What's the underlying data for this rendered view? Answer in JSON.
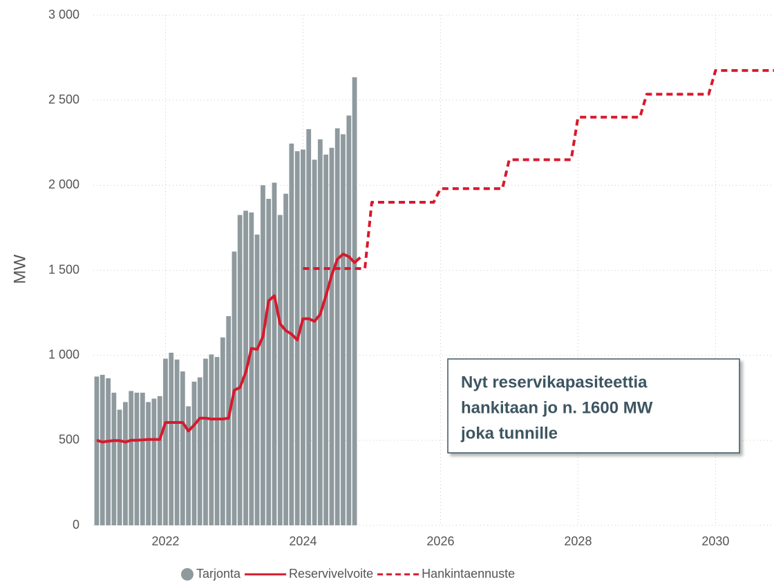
{
  "chart_data": {
    "type": "bar_line",
    "ylabel": "MW",
    "xlim": [
      2020.95,
      2030.85
    ],
    "xticks": [
      2022,
      2024,
      2026,
      2028,
      2030
    ],
    "ylim": [
      0,
      3000
    ],
    "yticks": [
      0,
      500,
      {
        "value": 1000,
        "label": "1 000"
      },
      {
        "value": 1500,
        "label": "1 500"
      },
      {
        "value": 2000,
        "label": "2 000"
      },
      {
        "value": 2500,
        "label": "2 500"
      },
      {
        "value": 3000,
        "label": "3 000"
      }
    ],
    "grid": true,
    "legend": "bottom",
    "series": [
      {
        "name": "Tarjonta",
        "type": "bar",
        "color": "#8f9a9e",
        "x": [
          2021,
          2021.083,
          2021.167,
          2021.25,
          2021.333,
          2021.417,
          2021.5,
          2021.583,
          2021.667,
          2021.75,
          2021.833,
          2021.917,
          2022,
          2022.083,
          2022.167,
          2022.25,
          2022.333,
          2022.417,
          2022.5,
          2022.583,
          2022.667,
          2022.75,
          2022.833,
          2022.917,
          2023,
          2023.083,
          2023.167,
          2023.25,
          2023.333,
          2023.417,
          2023.5,
          2023.583,
          2023.667,
          2023.75,
          2023.833,
          2023.917,
          2024,
          2024.083,
          2024.167,
          2024.25,
          2024.333,
          2024.417,
          2024.5,
          2024.583,
          2024.667,
          2024.75
        ],
        "values": [
          875,
          885,
          865,
          780,
          680,
          725,
          790,
          780,
          780,
          725,
          745,
          760,
          980,
          1015,
          975,
          905,
          700,
          845,
          870,
          980,
          1005,
          990,
          1105,
          1230,
          1610,
          1825,
          1850,
          1840,
          1710,
          2000,
          1920,
          2015,
          1825,
          1950,
          2245,
          2200,
          2210,
          2330,
          2150,
          2270,
          2180,
          2220,
          2335,
          2300,
          2410,
          2635
        ]
      },
      {
        "name": "Reservivelvoite",
        "type": "line",
        "color": "#d7192d",
        "x": [
          2021,
          2021.083,
          2021.167,
          2021.25,
          2021.333,
          2021.417,
          2021.5,
          2021.583,
          2021.667,
          2021.75,
          2021.833,
          2021.917,
          2022,
          2022.083,
          2022.167,
          2022.25,
          2022.333,
          2022.417,
          2022.5,
          2022.583,
          2022.667,
          2022.75,
          2022.833,
          2022.917,
          2023,
          2023.083,
          2023.167,
          2023.25,
          2023.333,
          2023.417,
          2023.5,
          2023.583,
          2023.667,
          2023.75,
          2023.833,
          2023.917,
          2024,
          2024.083,
          2024.167,
          2024.25,
          2024.333,
          2024.417,
          2024.5,
          2024.583,
          2024.667,
          2024.75,
          2024.833
        ],
        "values": [
          500,
          490,
          495,
          498,
          498,
          490,
          500,
          500,
          502,
          505,
          505,
          505,
          605,
          605,
          605,
          605,
          555,
          590,
          630,
          630,
          625,
          625,
          625,
          630,
          795,
          810,
          900,
          1040,
          1035,
          1110,
          1320,
          1350,
          1185,
          1145,
          1125,
          1090,
          1215,
          1215,
          1200,
          1240,
          1350,
          1470,
          1565,
          1595,
          1580,
          1545,
          1575
        ]
      },
      {
        "name": "Hankintaennuste",
        "type": "dashed",
        "color": "#d7192d",
        "x": [
          2024,
          2024.9,
          2025,
          2025.9,
          2026,
          2026.9,
          2027,
          2027.9,
          2028,
          2028.9,
          2029,
          2029.9,
          2030,
          2030.85
        ],
        "values": [
          1510,
          1510,
          1900,
          1900,
          1980,
          1980,
          2150,
          2150,
          2400,
          2400,
          2535,
          2535,
          2675,
          2675
        ]
      }
    ],
    "annotation": [
      "Nyt reservikapasiteettia",
      "hankitaan jo n. 1600 MW",
      "joka tunnille"
    ]
  }
}
